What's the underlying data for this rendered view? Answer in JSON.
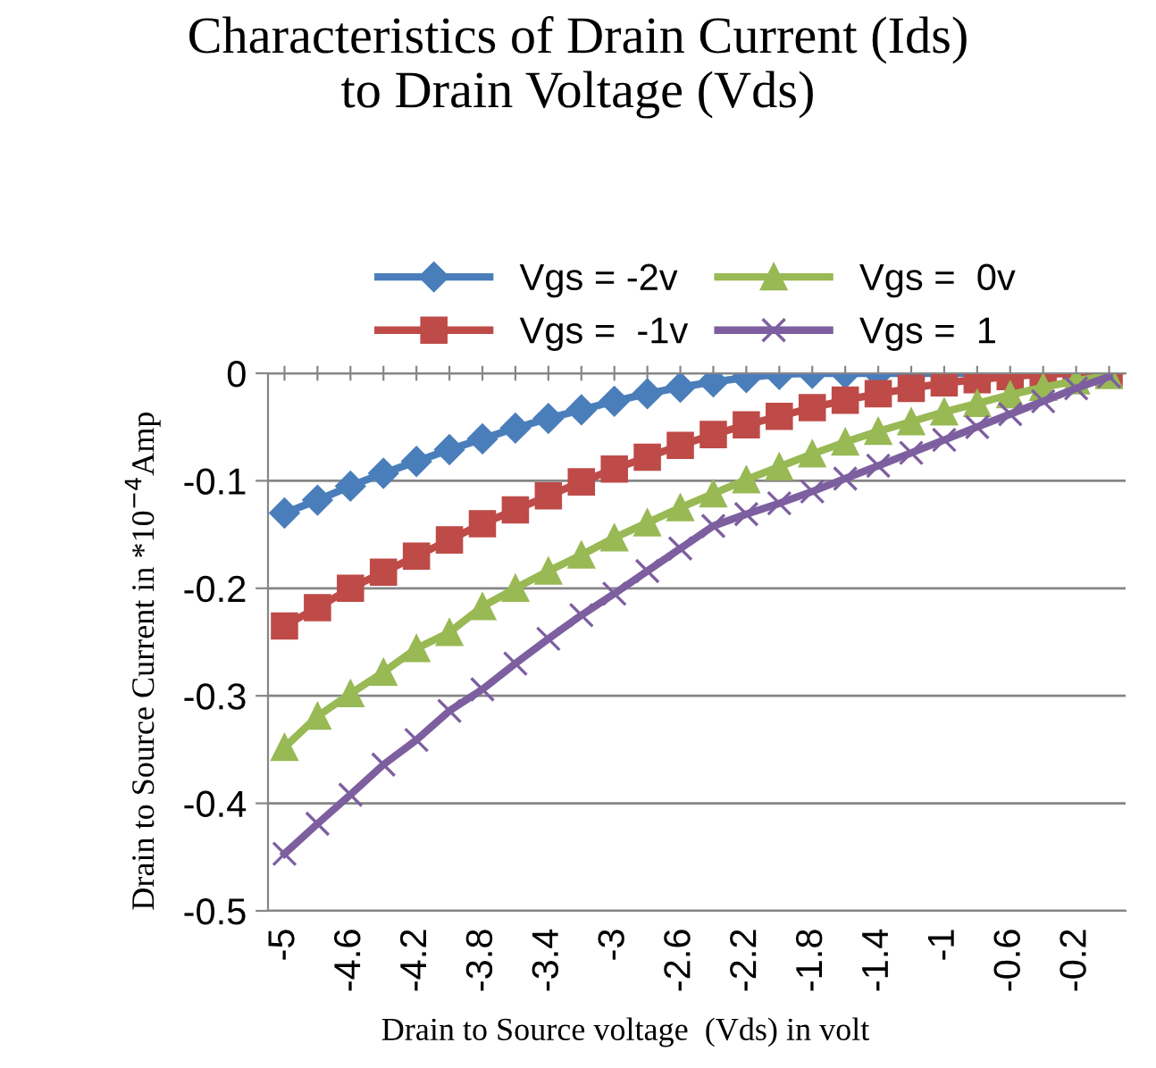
{
  "chart_data": {
    "type": "line",
    "title": "Characteristics of Drain Current (Ids)\nto Drain Voltage (Vds)",
    "xlabel": "Drain to Source voltage  (Vds) in volt",
    "ylabel": "Drain to Source Current in *10$^{−4}$Amp",
    "categories": [
      "-5",
      null,
      "-4.6",
      null,
      "-4.2",
      null,
      "-3.8",
      null,
      "-3.4",
      null,
      "-3",
      null,
      "-2.6",
      null,
      "-2.2",
      null,
      "-1.8",
      null,
      "-1.4",
      null,
      "-1",
      null,
      "-0.6",
      null,
      "-0.2",
      null
    ],
    "series": [
      {
        "name": "Vgs = -2v",
        "color": "#4a7ebb",
        "marker": "diamond",
        "values": [
          -0.13,
          -0.118,
          -0.105,
          -0.093,
          -0.082,
          -0.071,
          -0.061,
          -0.051,
          -0.042,
          -0.034,
          -0.026,
          -0.019,
          -0.013,
          -0.008,
          -0.004,
          -0.001,
          0,
          0,
          0,
          0,
          0,
          0,
          0,
          0,
          null,
          null
        ]
      },
      {
        "name": "Vgs =  -1v",
        "color": "#be4b48",
        "marker": "square",
        "values": [
          -0.235,
          -0.218,
          -0.2,
          -0.185,
          -0.17,
          -0.155,
          -0.14,
          -0.127,
          -0.114,
          -0.101,
          -0.089,
          -0.078,
          -0.067,
          -0.057,
          -0.048,
          -0.04,
          -0.032,
          -0.025,
          -0.019,
          -0.014,
          -0.009,
          -0.006,
          -0.003,
          -0.001,
          0,
          0
        ]
      },
      {
        "name": "Vgs =  0v",
        "color": "#98b954",
        "marker": "triangle",
        "values": [
          -0.348,
          -0.319,
          -0.298,
          -0.278,
          -0.256,
          -0.241,
          -0.217,
          -0.2,
          -0.184,
          -0.169,
          -0.153,
          -0.139,
          -0.125,
          -0.112,
          -0.099,
          -0.087,
          -0.075,
          -0.064,
          -0.054,
          -0.045,
          -0.036,
          -0.028,
          -0.02,
          -0.013,
          -0.007,
          -0.002
        ]
      },
      {
        "name": "Vgs =  1",
        "color": "#7d5fa0",
        "marker": "cross",
        "values": [
          -0.447,
          -0.419,
          -0.392,
          -0.364,
          -0.341,
          -0.314,
          -0.294,
          -0.27,
          -0.247,
          -0.225,
          -0.205,
          -0.184,
          -0.163,
          -0.142,
          -0.131,
          -0.121,
          -0.11,
          -0.098,
          -0.086,
          -0.074,
          -0.062,
          -0.05,
          -0.038,
          -0.026,
          -0.014,
          -0.003
        ]
      }
    ],
    "ylim": [
      -0.5,
      0
    ],
    "yticks": [
      {
        "value": -0.5,
        "label": "-0.5"
      },
      {
        "value": -0.4,
        "label": "-0.4"
      },
      {
        "value": -0.3,
        "label": "-0.3"
      },
      {
        "value": -0.2,
        "label": "-0.2"
      },
      {
        "value": -0.1,
        "label": "-0.1"
      },
      0
    ],
    "grid": "y",
    "legend": "top",
    "line_style": "solid"
  }
}
